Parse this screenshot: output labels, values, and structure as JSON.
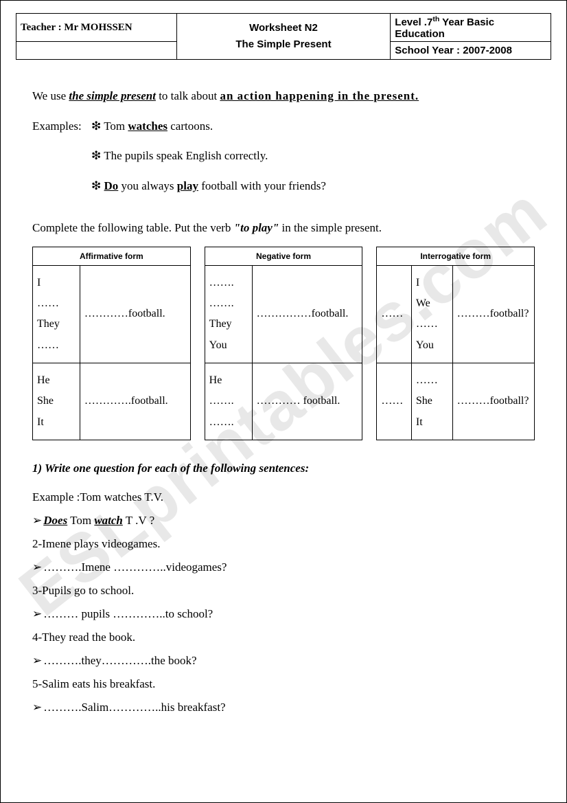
{
  "header": {
    "teacher": "Teacher : Mr MOHSSEN",
    "title_line1": "Worksheet N2",
    "title_line2": "The Simple Present",
    "level_prefix": "Level .7",
    "level_sup": "th",
    "level_suffix": " Year Basic Education",
    "school_year": "School Year : 2007-2008"
  },
  "intro": {
    "pre": "We use ",
    "key": "the simple present",
    "mid": " to talk about ",
    "action": "an action happening in the present."
  },
  "examples": {
    "label": "Examples:",
    "bullet": "❇",
    "e1_pre": " Tom ",
    "e1_u": "watches",
    "e1_post": " cartoons.",
    "e2": " The pupils speak English correctly.",
    "e3_pre": " ",
    "e3_do": "Do",
    "e3_mid": " you always ",
    "e3_play": "play",
    "e3_post": " football with your friends?"
  },
  "instruction": {
    "pre": "Complete the following table. Put the verb ",
    "verb": "\"to play\"",
    "post": " in the simple present."
  },
  "tables": {
    "aff": {
      "title": "Affirmative form",
      "r1c1": "I\n……\nThey\n……",
      "r1c2": "…………football.",
      "r2c1": "He\nShe\nIt",
      "r2c2": "………….football."
    },
    "neg": {
      "title": "Negative form",
      "r1c1": "…….\n…….\nThey\nYou",
      "r1c2": "……………football.",
      "r2c1": "He\n…….\n…….",
      "r2c2": "………… football."
    },
    "int": {
      "title": "Interrogative form",
      "r1c0": "……",
      "r1c1": "I\nWe\n……\nYou",
      "r1c2": "………football?",
      "r2c0": "……",
      "r2c1": "……\nShe\nIt",
      "r2c2": "………football?"
    }
  },
  "exercise": {
    "title": "1) Write one question for each of the following sentences:",
    "triangle": "➢",
    "example_label": "Example :Tom watches T.V.",
    "ans_does": "Does",
    "ans_mid": " Tom ",
    "ans_watch": "watch",
    "ans_post": " T .V ?",
    "q2": "2-Imene plays videogames.",
    "a2": "……….Imene …………..videogames?",
    "q3": "3-Pupils go to school.",
    "a3": "……… pupils …………..to school?",
    "q4": "4-They read the book.",
    "a4": "……….they………….the book?",
    "q5": "5-Salim eats his breakfast.",
    "a5": "……….Salim…………..his breakfast?"
  },
  "watermark": "ESLprintables.com"
}
